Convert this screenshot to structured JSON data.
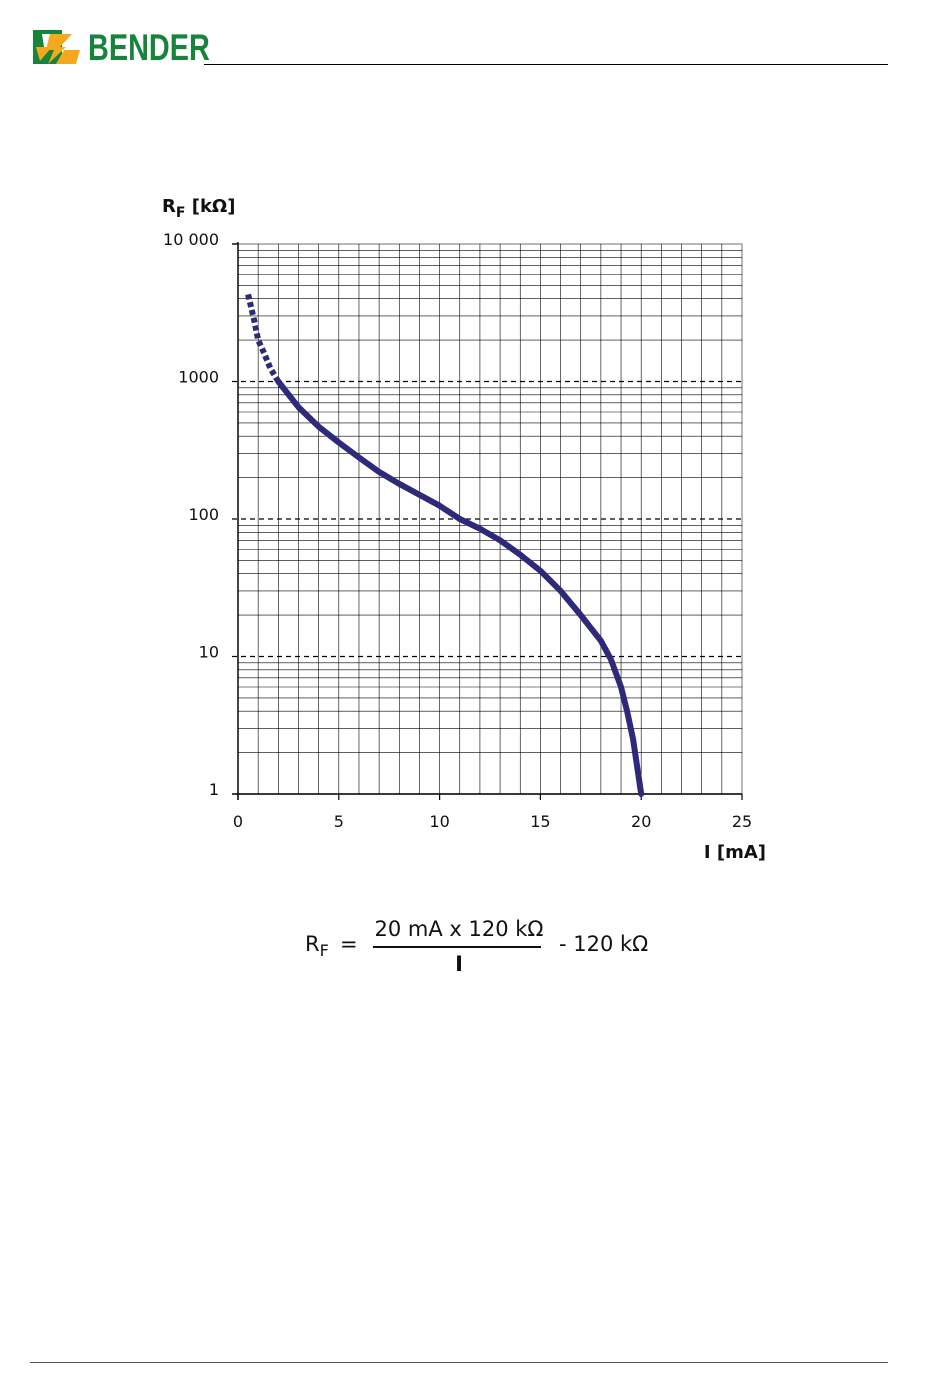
{
  "header": {
    "brand": "BENDER"
  },
  "chart_data": {
    "type": "line",
    "ylabel_main": "R",
    "ylabel_sub": "F",
    "ylabel_unit": "[kΩ]",
    "xlabel": "I [mA]",
    "yscale": "log",
    "ylim": [
      1,
      10000
    ],
    "xlim": [
      0,
      25
    ],
    "x_ticks": [
      0,
      5,
      10,
      15,
      20,
      25
    ],
    "x_tick_labels": [
      "0",
      "5",
      "10",
      "15",
      "20",
      "25"
    ],
    "y_ticks": [
      1,
      10,
      100,
      1000,
      10000
    ],
    "y_tick_labels": [
      "1",
      "10",
      "100",
      "1000",
      "10 000"
    ],
    "grid": true,
    "series": [
      {
        "color": "#2e2a7a",
        "style_segments": [
          {
            "style": "dashed",
            "x": [
              0.5,
              0.8,
              1.0,
              1.3,
              1.6,
              2.0
            ],
            "y": [
              4300,
              2800,
              2000,
              1600,
              1250,
              1000
            ]
          },
          {
            "style": "solid",
            "x": [
              2.0,
              3.0,
              4.0,
              5.0,
              6.0,
              7.0,
              8.0,
              9.0,
              10.0,
              11.0,
              12.0,
              13.0,
              14.0,
              15.0,
              16.0,
              17.0,
              18.0,
              18.5,
              19.0,
              19.3,
              19.6,
              20.0
            ],
            "y": [
              1000,
              650,
              470,
              360,
              280,
              220,
              180,
              150,
              125,
              100,
              85,
              70,
              55,
              42,
              30,
              20,
              13,
              9.5,
              6,
              4,
              2.5,
              1
            ]
          }
        ]
      }
    ]
  },
  "formula": {
    "lhs": "R",
    "lhs_sub": "F",
    "equals": "=",
    "numerator": "20 mA x 120 kΩ",
    "denominator": "I",
    "tail": "- 120 kΩ"
  }
}
